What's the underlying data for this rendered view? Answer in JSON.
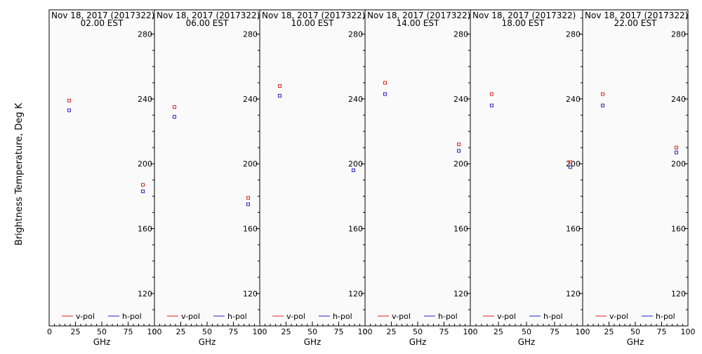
{
  "figure": {
    "ylabel": "Brightness Temperature, Deg K"
  },
  "chart_data": [
    {
      "type": "scatter",
      "title": "Nov 18, 2017 (2017322)",
      "subtitle": "02.00 EST",
      "xlabel": "GHz",
      "xlim": [
        0,
        100
      ],
      "ylim": [
        100,
        295
      ],
      "xticks": [
        "0",
        "25",
        "50",
        "75",
        "100"
      ],
      "yticks": [
        "120",
        "160",
        "200",
        "240",
        "280"
      ],
      "series": [
        {
          "name": "v-pol",
          "color": "#dd2222",
          "points": [
            [
              19,
              239
            ],
            [
              89,
              187
            ]
          ]
        },
        {
          "name": "h-pol",
          "color": "#2222cc",
          "points": [
            [
              19,
              233
            ],
            [
              89,
              183
            ]
          ]
        }
      ]
    },
    {
      "type": "scatter",
      "title": "Nov 18, 2017 (2017322)",
      "subtitle": "06.00 EST",
      "xlabel": "GHz",
      "xlim": [
        0,
        100
      ],
      "ylim": [
        100,
        295
      ],
      "xticks": [
        "0",
        "25",
        "50",
        "75",
        "100"
      ],
      "yticks": [
        "120",
        "160",
        "200",
        "240",
        "280"
      ],
      "series": [
        {
          "name": "v-pol",
          "color": "#dd2222",
          "points": [
            [
              19,
              235
            ],
            [
              89,
              179
            ]
          ]
        },
        {
          "name": "h-pol",
          "color": "#2222cc",
          "points": [
            [
              19,
              229
            ],
            [
              89,
              175
            ]
          ]
        }
      ]
    },
    {
      "type": "scatter",
      "title": "Nov 18, 2017 (2017322)",
      "subtitle": "10.00 EST",
      "xlabel": "GHz",
      "xlim": [
        0,
        100
      ],
      "ylim": [
        100,
        295
      ],
      "xticks": [
        "0",
        "25",
        "50",
        "75",
        "100"
      ],
      "yticks": [
        "120",
        "160",
        "200",
        "240",
        "280"
      ],
      "series": [
        {
          "name": "v-pol",
          "color": "#dd2222",
          "points": [
            [
              19,
              248
            ]
          ]
        },
        {
          "name": "h-pol",
          "color": "#2222cc",
          "points": [
            [
              19,
              242
            ],
            [
              89,
              196
            ]
          ]
        }
      ]
    },
    {
      "type": "scatter",
      "title": "Nov 18, 2017 (2017322)",
      "subtitle": "14.00 EST",
      "xlabel": "GHz",
      "xlim": [
        0,
        100
      ],
      "ylim": [
        100,
        295
      ],
      "xticks": [
        "0",
        "25",
        "50",
        "75",
        "100"
      ],
      "yticks": [
        "120",
        "160",
        "200",
        "240",
        "280"
      ],
      "series": [
        {
          "name": "v-pol",
          "color": "#dd2222",
          "points": [
            [
              19,
              250
            ],
            [
              89,
              212
            ]
          ]
        },
        {
          "name": "h-pol",
          "color": "#2222cc",
          "points": [
            [
              19,
              243
            ],
            [
              89,
              208
            ]
          ]
        }
      ]
    },
    {
      "type": "scatter",
      "title": "Nov 18, 2017 (2017322)",
      "subtitle": "18.00 EST",
      "xlabel": "GHz",
      "xlim": [
        0,
        100
      ],
      "ylim": [
        100,
        295
      ],
      "xticks": [
        "0",
        "25",
        "50",
        "75",
        "100"
      ],
      "yticks": [
        "120",
        "160",
        "200",
        "240",
        "280"
      ],
      "series": [
        {
          "name": "v-pol",
          "color": "#dd2222",
          "points": [
            [
              19,
              243
            ],
            [
              89,
              201
            ]
          ]
        },
        {
          "name": "h-pol",
          "color": "#2222cc",
          "points": [
            [
              19,
              236
            ],
            [
              89,
              198
            ]
          ]
        }
      ]
    },
    {
      "type": "scatter",
      "title": "Nov 18, 2017 (2017322)",
      "subtitle": "22.00 EST",
      "xlabel": "GHz",
      "xlim": [
        0,
        100
      ],
      "ylim": [
        100,
        295
      ],
      "xticks": [
        "0",
        "25",
        "50",
        "75",
        "100"
      ],
      "yticks": [
        "120",
        "160",
        "200",
        "240",
        "280"
      ],
      "series": [
        {
          "name": "v-pol",
          "color": "#dd2222",
          "points": [
            [
              19,
              243
            ],
            [
              89,
              210
            ]
          ]
        },
        {
          "name": "h-pol",
          "color": "#2222cc",
          "points": [
            [
              19,
              236
            ],
            [
              89,
              207
            ]
          ]
        }
      ]
    }
  ]
}
